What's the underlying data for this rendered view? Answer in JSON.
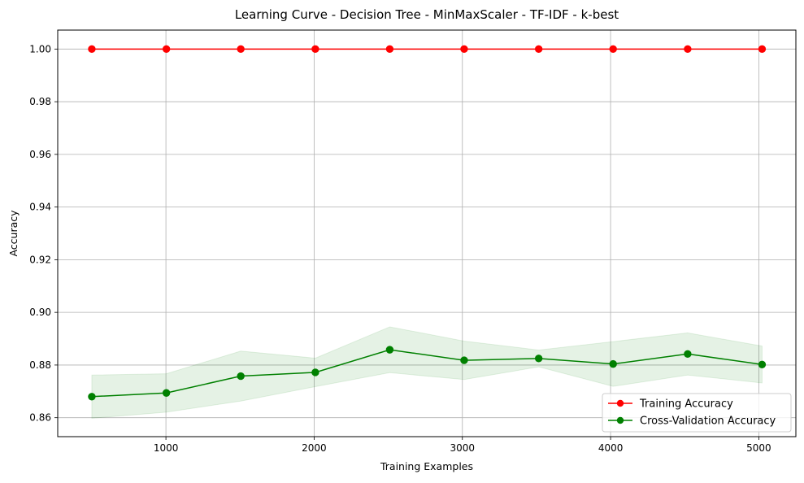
{
  "colors": {
    "training": "#ff0000",
    "cross_validation": "#008000",
    "band": "#008000",
    "grid": "#b0b0b0"
  },
  "chart_data": {
    "type": "line",
    "title": "Learning Curve - Decision Tree - MinMaxScaler - TF-IDF - k-best",
    "xlabel": "Training Examples",
    "ylabel": "Accuracy",
    "xlim": [
      270,
      5250
    ],
    "ylim": [
      0.8528,
      1.0072
    ],
    "xticks": [
      1000,
      2000,
      3000,
      4000,
      5000
    ],
    "xtick_labels": [
      "1000",
      "2000",
      "3000",
      "4000",
      "5000"
    ],
    "yticks": [
      0.86,
      0.88,
      0.9,
      0.92,
      0.94,
      0.96,
      0.98,
      1.0
    ],
    "ytick_labels": [
      "0.86",
      "0.88",
      "0.90",
      "0.92",
      "0.94",
      "0.96",
      "0.98",
      "1.00"
    ],
    "grid": true,
    "legend_position": "lower-right",
    "x": [
      500,
      1003,
      1505,
      2008,
      2510,
      3012,
      3515,
      4017,
      4520,
      5022
    ],
    "series": [
      {
        "name": "Training Accuracy",
        "color": "#ff0000",
        "marker": "circle",
        "values": [
          1.0,
          1.0,
          1.0,
          1.0,
          1.0,
          1.0,
          1.0,
          1.0,
          1.0,
          1.0
        ]
      },
      {
        "name": "Cross-Validation Accuracy",
        "color": "#008000",
        "marker": "circle",
        "values": [
          0.868,
          0.8694,
          0.8758,
          0.8772,
          0.8858,
          0.8818,
          0.8825,
          0.8804,
          0.8842,
          0.8802
        ],
        "band_upper": [
          0.8762,
          0.8767,
          0.8853,
          0.8826,
          0.8945,
          0.8891,
          0.8857,
          0.8889,
          0.8922,
          0.8872
        ],
        "band_lower": [
          0.8598,
          0.8621,
          0.8663,
          0.8718,
          0.8771,
          0.8745,
          0.8793,
          0.8719,
          0.8762,
          0.8732
        ]
      }
    ]
  }
}
